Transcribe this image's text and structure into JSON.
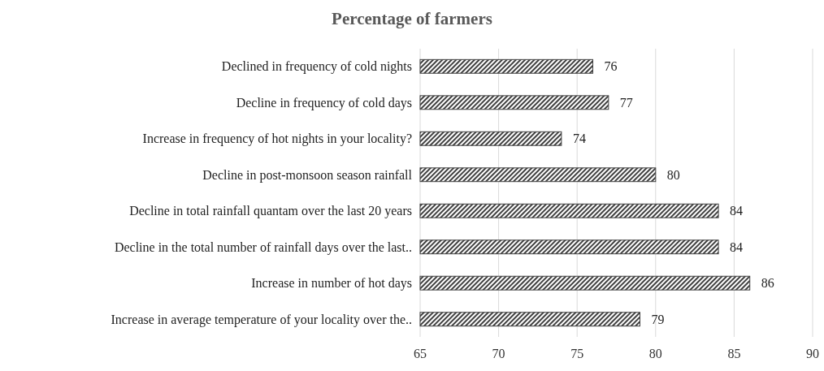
{
  "chart_data": {
    "type": "bar",
    "orientation": "horizontal",
    "title": "Percentage of farmers",
    "categories": [
      "Declined in frequency of cold nights",
      "Decline in frequency of cold days",
      "Increase in frequency of hot nights in your locality?",
      "Decline in post-monsoon season rainfall",
      "Decline in total rainfall quantam over the last 20 years",
      "Decline in the total number of rainfall days over the last..",
      "Increase in number of hot days",
      "Increase in average temperature of your locality over the.."
    ],
    "values": [
      76,
      77,
      74,
      80,
      84,
      84,
      86,
      79
    ],
    "color": "#404040",
    "data_labels": true,
    "xlim": [
      65,
      90
    ],
    "xticks": [
      65,
      70,
      75,
      80,
      85,
      90
    ],
    "grid": "x"
  }
}
